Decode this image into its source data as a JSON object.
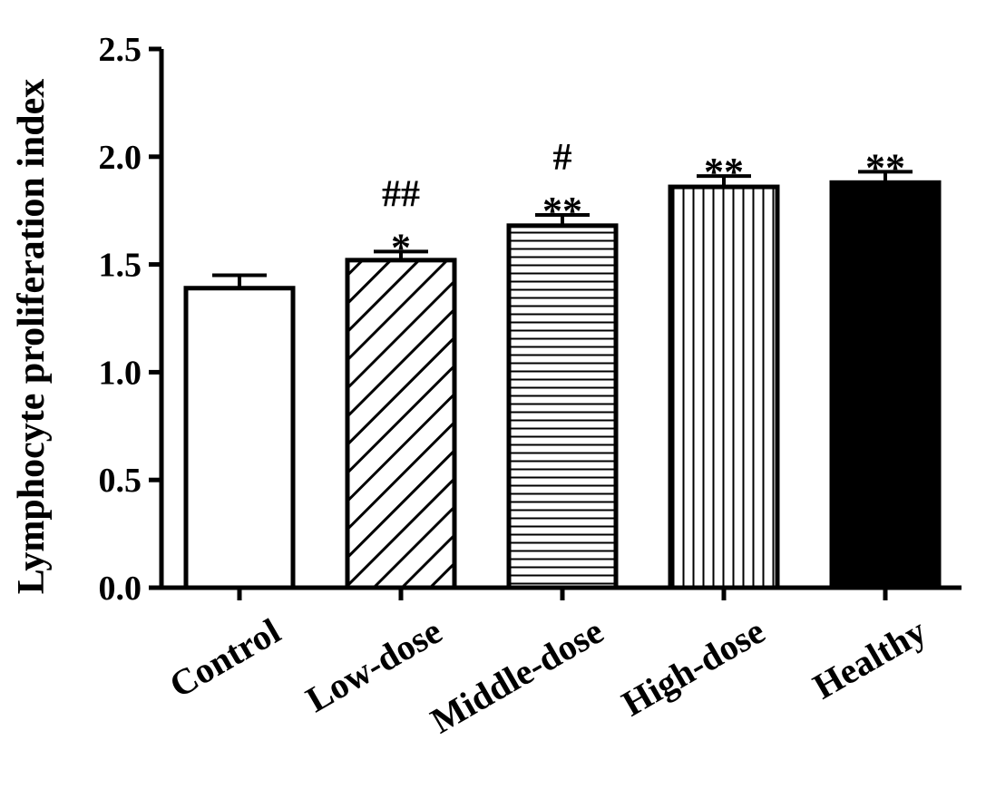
{
  "chart_data": {
    "type": "bar",
    "title": "",
    "ylabel": "Lymphocyte proliferation index",
    "xlabel": "",
    "categories": [
      "Control",
      "Low-dose",
      "Middle-dose",
      "High-dose",
      "Healthy"
    ],
    "values": [
      1.39,
      1.52,
      1.68,
      1.86,
      1.88
    ],
    "errors": [
      0.06,
      0.04,
      0.05,
      0.05,
      0.05
    ],
    "annotations": [
      [],
      [
        "##",
        "*"
      ],
      [
        "#",
        "**"
      ],
      [
        "**"
      ],
      [
        "**"
      ]
    ],
    "patterns": [
      "none",
      "diagonal",
      "horizontal",
      "vertical",
      "solid"
    ],
    "ylim": [
      0,
      2.5
    ],
    "yticks": [
      "0.0",
      "0.5",
      "1.0",
      "1.5",
      "2.0",
      "2.5"
    ],
    "grid": false,
    "colors": {
      "bar_stroke": "#000000",
      "bar_fill": "#ffffff",
      "solid_fill": "#000000"
    }
  }
}
